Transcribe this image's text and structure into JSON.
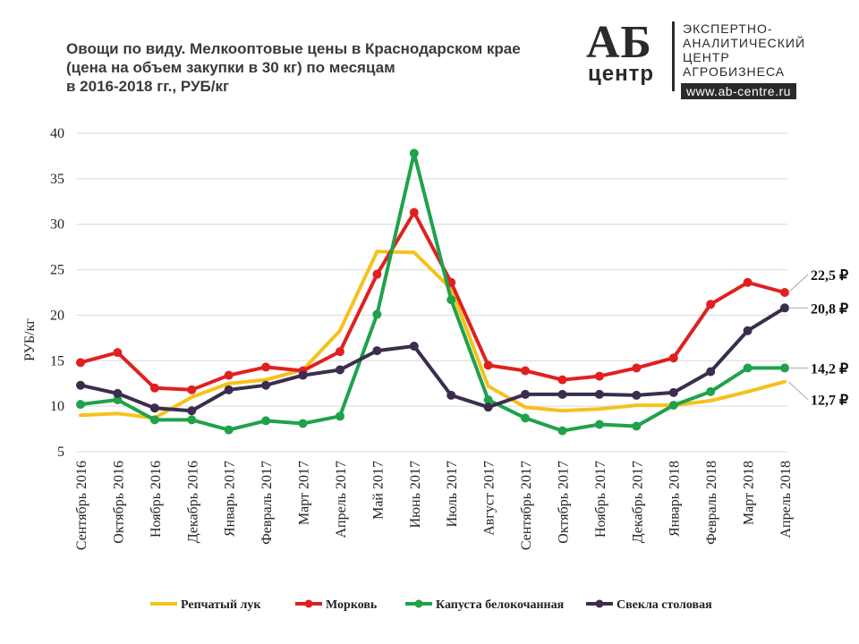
{
  "header": {
    "title_lines": [
      "Овощи по виду. Мелкооптовые цены в Краснодарском крае",
      "(цена на объем закупки в 30 кг) по месяцам",
      "в 2016-2018 гг., РУБ/кг"
    ]
  },
  "logo": {
    "ab": "АБ",
    "centr": "центр",
    "lines": [
      "ЭКСПЕРТНО-",
      "АНАЛИТИЧЕСКИЙ",
      "ЦЕНТР",
      "АГРОБИЗНЕСА"
    ],
    "url": "www.ab-centre.ru"
  },
  "chart_data": {
    "type": "line",
    "title": "Овощи по виду. Мелкооптовые цены в Краснодарском крае (цена на объем закупки в 30 кг) по месяцам в 2016-2018 гг., РУБ/кг",
    "ylabel": "РУБ/кг",
    "xlabel": "",
    "ylim": [
      5,
      40
    ],
    "yticks": [
      5,
      10,
      15,
      20,
      25,
      30,
      35,
      40
    ],
    "grid": true,
    "legend_position": "bottom",
    "categories": [
      "Сентябрь 2016",
      "Октябрь 2016",
      "Ноябрь 2016",
      "Декабрь 2016",
      "Январь 2017",
      "Февраль 2017",
      "Март 2017",
      "Апрель 2017",
      "Май 2017",
      "Июнь 2017",
      "Июль 2017",
      "Август 2017",
      "Сентябрь 2017",
      "Октябрь 2017",
      "Ноябрь 2017",
      "Декабрь 2017",
      "Январь 2018",
      "Февраль 2018",
      "Март 2018",
      "Апрель 2018"
    ],
    "series": [
      {
        "name": "Репчатый лук",
        "color": "#f5c11b",
        "marker": false,
        "values": [
          9.0,
          9.2,
          8.7,
          11.0,
          12.5,
          12.9,
          14.0,
          18.3,
          27.0,
          26.9,
          22.9,
          12.2,
          9.9,
          9.5,
          9.7,
          10.1,
          10.1,
          10.6,
          11.6,
          12.7
        ],
        "end_label": "12,7 ₽"
      },
      {
        "name": "Морковь",
        "color": "#e02020",
        "marker": true,
        "values": [
          14.8,
          15.9,
          12.0,
          11.8,
          13.4,
          14.3,
          13.9,
          16.0,
          24.5,
          31.3,
          23.6,
          14.5,
          13.9,
          12.9,
          13.3,
          14.2,
          15.3,
          21.2,
          23.6,
          22.5
        ],
        "end_label": "22,5 ₽"
      },
      {
        "name": "Капуста белокочанная",
        "color": "#1fa24a",
        "marker": true,
        "values": [
          10.2,
          10.7,
          8.5,
          8.5,
          7.4,
          8.4,
          8.1,
          8.9,
          20.1,
          37.8,
          21.7,
          10.7,
          8.7,
          7.3,
          8.0,
          7.8,
          10.1,
          11.6,
          14.2,
          14.2
        ],
        "end_label": "14,2 ₽"
      },
      {
        "name": "Свекла столовая",
        "color": "#3b2d4d",
        "marker": true,
        "values": [
          12.3,
          11.4,
          9.8,
          9.5,
          11.8,
          12.3,
          13.4,
          14.0,
          16.1,
          16.6,
          11.2,
          9.9,
          11.3,
          11.3,
          11.3,
          11.2,
          11.5,
          13.8,
          18.3,
          20.8
        ],
        "end_label": "20,8 ₽"
      }
    ]
  }
}
